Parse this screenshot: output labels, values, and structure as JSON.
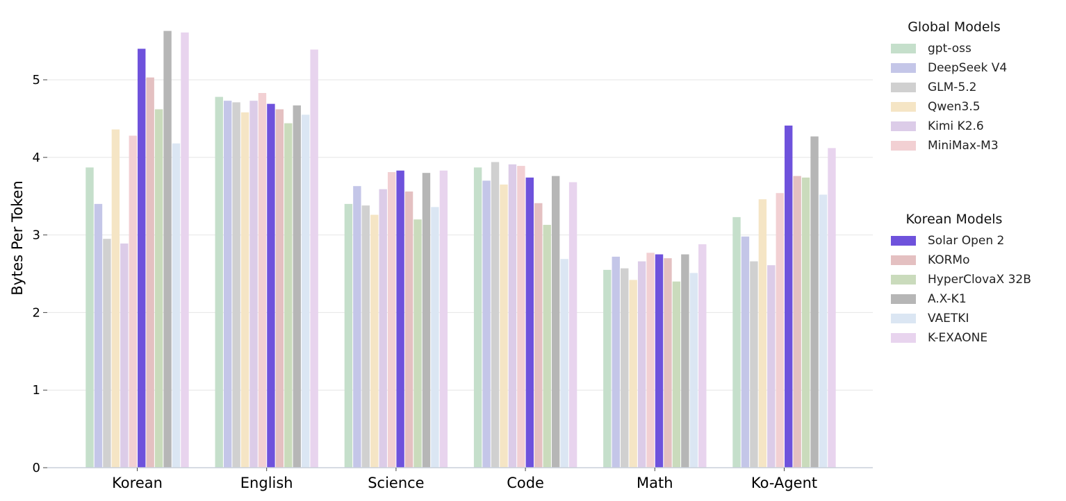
{
  "chart_data": {
    "type": "bar",
    "ylabel": "Bytes Per Token",
    "xlabel": "",
    "ylim": [
      0,
      5.65
    ],
    "yticks": [
      "0",
      "1",
      "2",
      "3",
      "4",
      "5"
    ],
    "grid": "horizontal",
    "legend_placement": "right",
    "categories": [
      "Korean",
      "English",
      "Science",
      "Code",
      "Math",
      "Ko-Agent"
    ],
    "series": [
      {
        "name": "gpt-oss",
        "group": "global",
        "color": "#c5dfcb",
        "values": [
          3.87,
          4.78,
          3.4,
          3.87,
          2.55,
          3.23
        ]
      },
      {
        "name": "DeepSeek V4",
        "group": "global",
        "color": "#c4c6e8",
        "values": [
          3.4,
          4.73,
          3.63,
          3.7,
          2.72,
          2.98
        ]
      },
      {
        "name": "GLM-5.2",
        "group": "global",
        "color": "#d0d0d0",
        "values": [
          2.95,
          4.71,
          3.38,
          3.94,
          2.57,
          2.66
        ]
      },
      {
        "name": "Qwen3.5",
        "group": "global",
        "color": "#f5e5c5",
        "values": [
          4.36,
          4.58,
          3.26,
          3.65,
          2.42,
          3.46
        ]
      },
      {
        "name": "Kimi K2.6",
        "group": "global",
        "color": "#dccce8",
        "values": [
          2.89,
          4.73,
          3.59,
          3.91,
          2.66,
          2.61
        ]
      },
      {
        "name": "MiniMax-M3",
        "group": "global",
        "color": "#f2d0d3",
        "values": [
          4.28,
          4.83,
          3.81,
          3.89,
          2.77,
          3.54
        ]
      },
      {
        "name": "Solar Open 2",
        "group": "korean",
        "color": "#6e52dc",
        "values": [
          5.4,
          4.69,
          3.83,
          3.74,
          2.75,
          4.41
        ]
      },
      {
        "name": "KORMo",
        "group": "korean",
        "color": "#e4c0c1",
        "values": [
          5.03,
          4.62,
          3.56,
          3.41,
          2.7,
          3.76
        ]
      },
      {
        "name": "HyperClovaX 32B",
        "group": "korean",
        "color": "#cadbbc",
        "values": [
          4.62,
          4.44,
          3.2,
          3.13,
          2.4,
          3.74
        ]
      },
      {
        "name": "A.X-K1",
        "group": "korean",
        "color": "#b6b6b6",
        "values": [
          5.63,
          4.67,
          3.8,
          3.76,
          2.75,
          4.27
        ]
      },
      {
        "name": "VAETKI",
        "group": "korean",
        "color": "#dbe6f3",
        "values": [
          4.18,
          4.55,
          3.36,
          2.69,
          2.51,
          3.52
        ]
      },
      {
        "name": "K-EXAONE",
        "group": "korean",
        "color": "#e8d4ee",
        "values": [
          5.61,
          5.39,
          3.83,
          3.68,
          2.88,
          4.12
        ]
      }
    ]
  },
  "legend": {
    "global_title": "Global Models",
    "korean_title": "Korean Models"
  }
}
